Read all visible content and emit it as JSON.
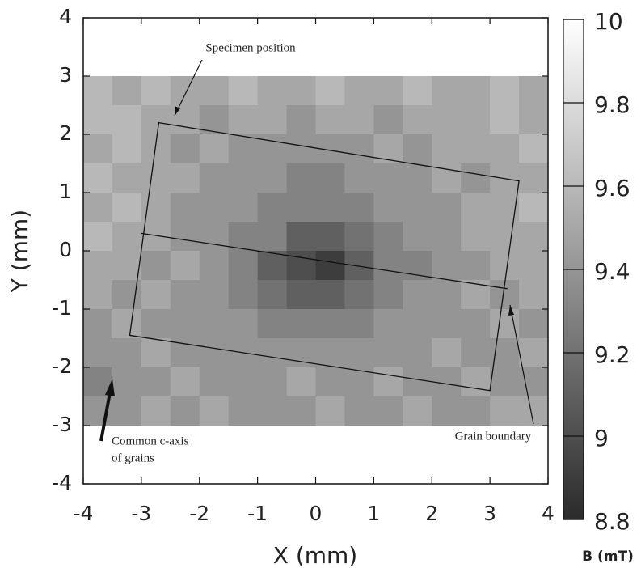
{
  "chart_data": {
    "type": "heatmap",
    "xlabel": "X (mm)",
    "ylabel": "Y (mm)",
    "colorbar_label": "B (mT)",
    "xlim": [
      -4,
      4
    ],
    "ylim": [
      -4,
      4
    ],
    "xticks": [
      -4,
      -3,
      -2,
      -1,
      0,
      1,
      2,
      3,
      4
    ],
    "yticks": [
      -4,
      -3,
      -2,
      -1,
      0,
      1,
      2,
      3,
      4
    ],
    "zlim": [
      8.8,
      10
    ],
    "zticks": [
      8.8,
      9,
      9.2,
      9.4,
      9.6,
      9.8,
      10
    ],
    "colormap": [
      "#2b2b2b",
      "#ffffff"
    ],
    "x": [
      -3.75,
      -3.25,
      -2.75,
      -2.25,
      -1.75,
      -1.25,
      -0.75,
      -0.25,
      0.25,
      0.75,
      1.25,
      1.75,
      2.25,
      2.75,
      3.25,
      3.75
    ],
    "y": [
      2.75,
      2.25,
      1.75,
      1.25,
      0.75,
      0.25,
      -0.25,
      -0.75,
      -1.25,
      -1.75,
      -2.25,
      -2.75
    ],
    "z": [
      [
        9.6,
        9.5,
        9.6,
        9.5,
        9.5,
        9.6,
        9.5,
        9.5,
        9.6,
        9.5,
        9.5,
        9.6,
        9.5,
        9.5,
        9.6,
        9.5
      ],
      [
        9.6,
        9.6,
        9.5,
        9.5,
        9.4,
        9.5,
        9.5,
        9.4,
        9.5,
        9.5,
        9.4,
        9.5,
        9.5,
        9.5,
        9.6,
        9.5
      ],
      [
        9.5,
        9.6,
        9.5,
        9.4,
        9.5,
        9.4,
        9.4,
        9.4,
        9.4,
        9.4,
        9.5,
        9.4,
        9.5,
        9.5,
        9.5,
        9.6
      ],
      [
        9.6,
        9.5,
        9.5,
        9.5,
        9.4,
        9.4,
        9.4,
        9.3,
        9.3,
        9.4,
        9.4,
        9.4,
        9.5,
        9.4,
        9.5,
        9.5
      ],
      [
        9.5,
        9.6,
        9.5,
        9.4,
        9.4,
        9.4,
        9.3,
        9.3,
        9.3,
        9.3,
        9.4,
        9.4,
        9.4,
        9.5,
        9.5,
        9.6
      ],
      [
        9.6,
        9.5,
        9.5,
        9.4,
        9.4,
        9.3,
        9.3,
        9.1,
        9.1,
        9.2,
        9.3,
        9.4,
        9.4,
        9.5,
        9.5,
        9.5
      ],
      [
        9.5,
        9.5,
        9.4,
        9.5,
        9.4,
        9.3,
        9.1,
        9.0,
        8.9,
        9.1,
        9.3,
        9.3,
        9.4,
        9.4,
        9.5,
        9.5
      ],
      [
        9.5,
        9.4,
        9.5,
        9.4,
        9.4,
        9.3,
        9.2,
        9.1,
        9.1,
        9.2,
        9.3,
        9.4,
        9.4,
        9.5,
        9.4,
        9.5
      ],
      [
        9.4,
        9.5,
        9.4,
        9.4,
        9.4,
        9.4,
        9.3,
        9.3,
        9.3,
        9.3,
        9.4,
        9.4,
        9.4,
        9.4,
        9.5,
        9.4
      ],
      [
        9.4,
        9.4,
        9.5,
        9.4,
        9.4,
        9.4,
        9.4,
        9.4,
        9.4,
        9.4,
        9.4,
        9.4,
        9.5,
        9.4,
        9.4,
        9.5
      ],
      [
        9.3,
        9.4,
        9.4,
        9.5,
        9.4,
        9.4,
        9.4,
        9.5,
        9.4,
        9.4,
        9.5,
        9.4,
        9.4,
        9.5,
        9.4,
        9.4
      ],
      [
        9.4,
        9.4,
        9.5,
        9.4,
        9.5,
        9.4,
        9.4,
        9.4,
        9.5,
        9.4,
        9.4,
        9.5,
        9.4,
        9.4,
        9.5,
        9.5
      ]
    ],
    "specimen_outline": [
      [
        -2.7,
        2.2
      ],
      [
        3.5,
        1.2
      ],
      [
        3.0,
        -2.4
      ],
      [
        -3.2,
        -1.45
      ]
    ],
    "grain_boundary": [
      [
        -3.0,
        0.3
      ],
      [
        3.3,
        -0.65
      ]
    ],
    "annotations": [
      {
        "text": "Specimen position"
      },
      {
        "text": "Grain boundary"
      },
      {
        "text": [
          "Common c-axis",
          "of grains"
        ]
      }
    ]
  }
}
